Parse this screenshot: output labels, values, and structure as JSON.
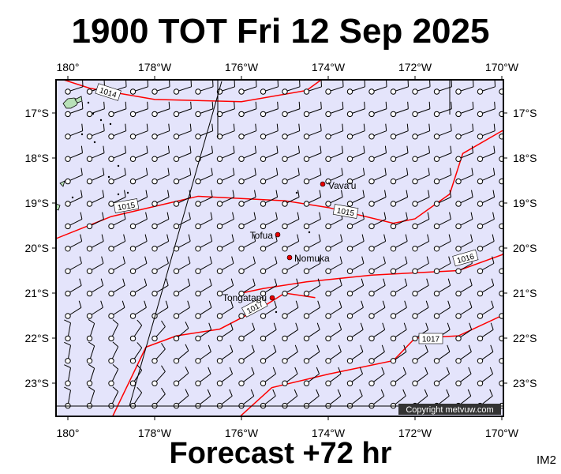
{
  "title": "1900 TOT Fri 12 Sep 2025",
  "footer": "Forecast +72 hr",
  "corner_code": "IM2",
  "copyright": "Copyright metvuw.com",
  "colors": {
    "sea": "#e4e4fb",
    "land": "#b8e1b8",
    "isobar": "#ff0000",
    "place": "#e60000"
  },
  "axes": {
    "lon_labels": [
      "180°",
      "178°W",
      "176°W",
      "174°W",
      "172°W",
      "170°W"
    ],
    "lat_labels": [
      "17°S",
      "18°S",
      "19°S",
      "20°S",
      "21°S",
      "22°S",
      "23°S"
    ]
  },
  "places": [
    {
      "name": "Vava'u",
      "lon": -174.0,
      "lat": -18.65
    },
    {
      "name": "Tofua",
      "lon": -175.05,
      "lat": -19.75
    },
    {
      "name": "Nomuka",
      "lon": -174.8,
      "lat": -20.25
    },
    {
      "name": "Tongatapu",
      "lon": -175.2,
      "lat": -21.15
    }
  ],
  "isobars": [
    {
      "label": "1014",
      "points": [
        [
          -180.3,
          -16.2
        ],
        [
          -179.5,
          -16.45
        ],
        [
          -178,
          -16.7
        ],
        [
          -176,
          -16.75
        ],
        [
          -174.5,
          -16.5
        ],
        [
          -174,
          -16.15
        ]
      ]
    },
    {
      "label": "1015",
      "points": [
        [
          -180.3,
          -19.8
        ],
        [
          -179,
          -19.3
        ],
        [
          -177,
          -18.85
        ],
        [
          -175,
          -18.95
        ],
        [
          -174,
          -19.1
        ],
        [
          -172.5,
          -19.45
        ],
        [
          -172,
          -19.35
        ],
        [
          -171.2,
          -18.8
        ],
        [
          -170.9,
          -17.9
        ],
        [
          -170,
          -17.4
        ],
        [
          -169.8,
          -17.35
        ]
      ]
    },
    {
      "label": "1016",
      "points": [
        [
          -176,
          -21.0
        ],
        [
          -175.5,
          -20.9
        ],
        [
          -174.5,
          -20.75
        ],
        [
          -173,
          -20.6
        ],
        [
          -171,
          -20.5
        ],
        [
          -170,
          -20.15
        ],
        [
          -169.8,
          -20.0
        ]
      ]
    },
    {
      "label": "1017",
      "points": [
        [
          -179,
          -23.8
        ],
        [
          -178.2,
          -22.2
        ],
        [
          -177.5,
          -21.95
        ],
        [
          -176.5,
          -21.8
        ],
        [
          -175.5,
          -21.3
        ],
        [
          -175,
          -21.0
        ],
        [
          -174.3,
          -21.1
        ]
      ]
    },
    {
      "label": "1017",
      "points": [
        [
          -176.1,
          -23.8
        ],
        [
          -175.3,
          -23.1
        ],
        [
          -174,
          -22.8
        ],
        [
          -172.5,
          -22.5
        ],
        [
          -172,
          -22.0
        ],
        [
          -171,
          -21.95
        ],
        [
          -170,
          -21.5
        ],
        [
          -169.8,
          -21.4
        ]
      ]
    }
  ]
}
